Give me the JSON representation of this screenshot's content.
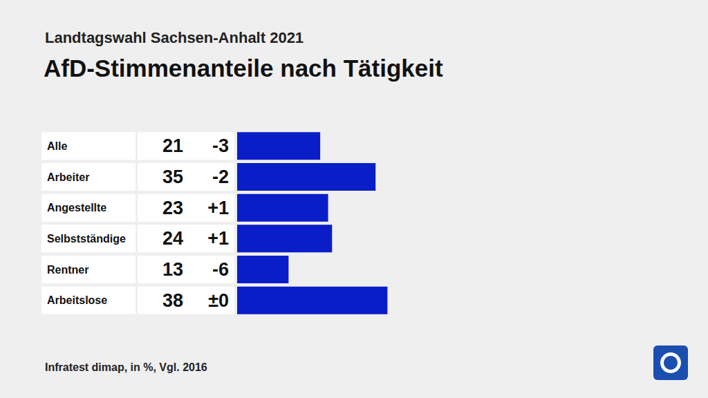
{
  "chart_data": {
    "type": "bar",
    "orientation": "horizontal",
    "subtitle": "Landtagswahl Sachsen-Anhalt 2021",
    "title": "AfD-Stimmenanteile nach Tätigkeit",
    "source": "Infratest dimap, in %, Vgl. 2016",
    "categories": [
      "Alle",
      "Arbeiter",
      "Angestellte",
      "Selbstständige",
      "Rentner",
      "Arbeitslose"
    ],
    "values": [
      21,
      35,
      23,
      24,
      13,
      38
    ],
    "changes": [
      -3,
      -2,
      1,
      1,
      -6,
      0
    ],
    "change_labels": [
      "-3",
      "-2",
      "+1",
      "+1",
      "-6",
      "±0"
    ],
    "color": "#0a1ec8",
    "xlim": [
      0,
      50
    ],
    "data_labels": true,
    "tick_labels": false,
    "grid": false
  }
}
